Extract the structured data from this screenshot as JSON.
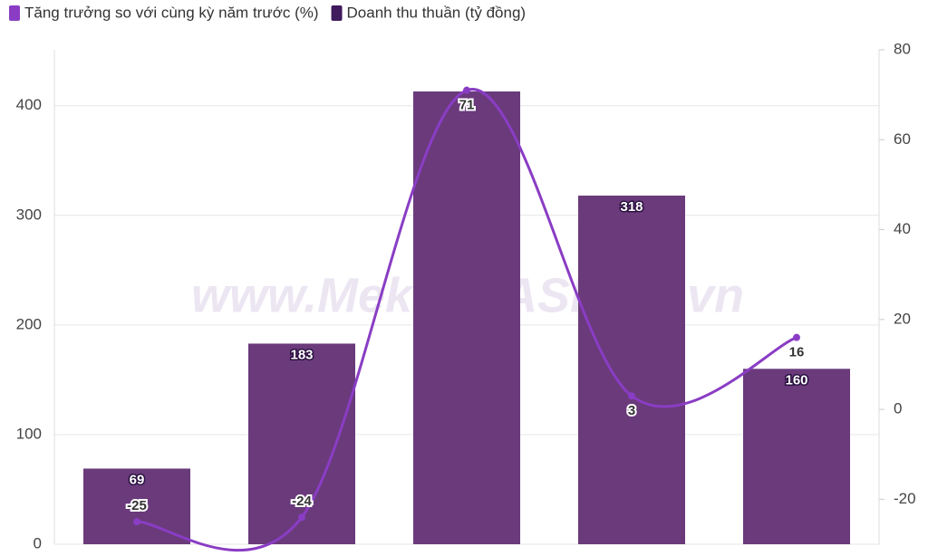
{
  "chart_data": {
    "type": "bar",
    "watermark": "www.MekongASEAN.vn",
    "categories": [
      null,
      null,
      null,
      null,
      null
    ],
    "series": [
      {
        "name": "Tăng trưởng so với cùng kỳ năm trước (%)",
        "type": "line",
        "axis": "y2",
        "color": "#8a3dc4",
        "values": [
          -25,
          -24,
          71,
          3,
          16
        ]
      },
      {
        "name": "Doanh thu thuần (tỷ đồng)",
        "type": "bar",
        "color": "#6a3a7b",
        "legend_color": "#3f1a5c",
        "values": [
          69,
          183,
          413,
          318,
          160
        ],
        "value_labels": [
          "69",
          "183",
          null,
          "318",
          "160"
        ]
      }
    ],
    "ylim": [
      0,
      451
    ],
    "yticks": [
      0,
      100,
      200,
      300,
      400
    ],
    "y2lim": [
      -30,
      80
    ],
    "y2ticks": [
      -20,
      0,
      20,
      40,
      60,
      80
    ],
    "grid": true
  }
}
